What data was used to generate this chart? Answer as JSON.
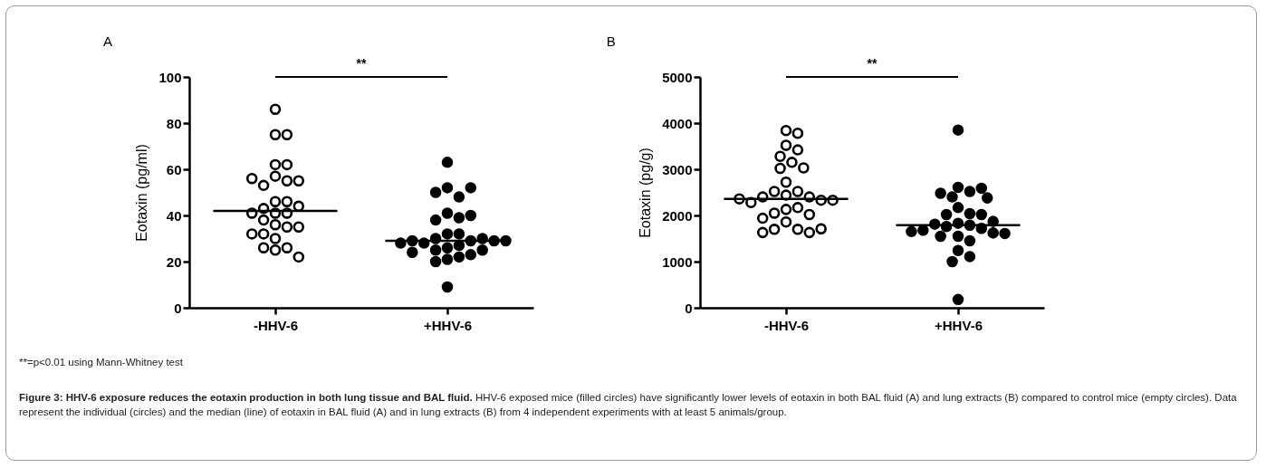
{
  "chart_data": [
    {
      "type": "scatter",
      "title": "A",
      "ylabel": "Eotaxin (pg/ml)",
      "categories": [
        "-HHV-6",
        "+HHV-6"
      ],
      "ylim": [
        0,
        100
      ],
      "yticks": [
        0,
        20,
        40,
        60,
        80,
        100
      ],
      "grid": false,
      "legend": false,
      "marker": "circle",
      "annotations": [
        "**",
        "**=p<0.01 using Mann-Whitney test",
        "Figure 3: HHV-6 exposure reduces the eotaxin production in both lung tissue and BAL fluid.",
        "HHV-6 exposed mice (filled circles) have significantly lower levels of eotaxin in both BAL fluid (A) and lung extracts (B) compared to control mice (empty circles). Data represent the individual (circles) and the median (line) of eotaxin in BAL fluid (A) and in lung extracts (B) from 4 independent experiments with at least 5 animals/group."
      ],
      "series": [
        {
          "type": "scatter",
          "color": "#ffffff",
          "x": [
            "-HHV-6",
            "-HHV-6",
            "-HHV-6",
            "-HHV-6",
            "-HHV-6",
            "-HHV-6",
            "-HHV-6",
            "-HHV-6",
            "-HHV-6",
            "-HHV-6",
            "-HHV-6",
            "-HHV-6",
            "-HHV-6",
            "-HHV-6",
            "-HHV-6",
            "-HHV-6",
            "-HHV-6",
            "-HHV-6",
            "-HHV-6",
            "-HHV-6",
            "-HHV-6",
            "-HHV-6",
            "-HHV-6",
            "-HHV-6",
            "-HHV-6",
            "-HHV-6",
            "-HHV-6",
            "-HHV-6"
          ],
          "values": [
            86,
            75,
            75,
            62,
            62,
            57,
            55,
            53,
            55,
            56,
            46,
            46,
            43,
            44,
            41,
            41,
            41,
            38,
            36,
            35,
            35,
            32,
            32,
            30,
            25,
            26,
            26,
            22
          ]
        },
        {
          "type": "scatter",
          "color": "#000000",
          "x": [
            "+HHV-6",
            "+HHV-6",
            "+HHV-6",
            "+HHV-6",
            "+HHV-6",
            "+HHV-6",
            "+HHV-6",
            "+HHV-6",
            "+HHV-6",
            "+HHV-6",
            "+HHV-6",
            "+HHV-6",
            "+HHV-6",
            "+HHV-6",
            "+HHV-6",
            "+HHV-6",
            "+HHV-6",
            "+HHV-6",
            "+HHV-6",
            "+HHV-6",
            "+HHV-6",
            "+HHV-6",
            "+HHV-6",
            "+HHV-6",
            "+HHV-6",
            "+HHV-6",
            "+HHV-6",
            "+HHV-6",
            "+HHV-6"
          ],
          "values": [
            63,
            52,
            48,
            50,
            52,
            41,
            39,
            38,
            40,
            32,
            32,
            30,
            29,
            28,
            30,
            29,
            29,
            28,
            26,
            27,
            25,
            25,
            23,
            24,
            21,
            22,
            20,
            9,
            29
          ]
        },
        {
          "type": "box",
          "color": "#000000",
          "boxes": [
            {
              "low": 42,
              "q1": 42,
              "median": 42,
              "q3": 42,
              "high": 42
            },
            {
              "low": 29,
              "q1": 29,
              "median": 29,
              "q3": 29,
              "high": 29
            }
          ]
        }
      ]
    },
    {
      "type": "scatter",
      "title": "B",
      "ylabel": "Eotaxin (pg/g)",
      "categories": [
        "-HHV-6",
        "+HHV-6"
      ],
      "ylim": [
        0,
        5000
      ],
      "yticks": [
        0,
        1000,
        2000,
        3000,
        4000,
        5000
      ],
      "grid": false,
      "legend": false,
      "marker": "circle",
      "annotations": [
        "**"
      ],
      "series": [
        {
          "type": "scatter",
          "color": "#ffffff",
          "x": [
            "-HHV-6",
            "-HHV-6",
            "-HHV-6",
            "-HHV-6",
            "-HHV-6",
            "-HHV-6",
            "-HHV-6",
            "-HHV-6",
            "-HHV-6",
            "-HHV-6",
            "-HHV-6",
            "-HHV-6",
            "-HHV-6",
            "-HHV-6",
            "-HHV-6",
            "-HHV-6",
            "-HHV-6",
            "-HHV-6",
            "-HHV-6",
            "-HHV-6",
            "-HHV-6",
            "-HHV-6",
            "-HHV-6",
            "-HHV-6",
            "-HHV-6",
            "-HHV-6",
            "-HHV-6",
            "-HHV-6",
            "-HHV-6"
          ],
          "values": [
            3840,
            3780,
            3520,
            3420,
            3280,
            3150,
            3020,
            3030,
            2720,
            2520,
            2520,
            2440,
            2400,
            2400,
            2330,
            2280,
            2330,
            2130,
            2170,
            2050,
            2020,
            1940,
            1860,
            1700,
            1700,
            1630,
            1630,
            1710,
            2360
          ]
        },
        {
          "type": "scatter",
          "color": "#000000",
          "x": [
            "+HHV-6",
            "+HHV-6",
            "+HHV-6",
            "+HHV-6",
            "+HHV-6",
            "+HHV-6",
            "+HHV-6",
            "+HHV-6",
            "+HHV-6",
            "+HHV-6",
            "+HHV-6",
            "+HHV-6",
            "+HHV-6",
            "+HHV-6",
            "+HHV-6",
            "+HHV-6",
            "+HHV-6",
            "+HHV-6",
            "+HHV-6",
            "+HHV-6",
            "+HHV-6",
            "+HHV-6",
            "+HHV-6",
            "+HHV-6",
            "+HHV-6",
            "+HHV-6",
            "+HHV-6",
            "+HHV-6"
          ],
          "values": [
            3850,
            2610,
            2520,
            2400,
            2480,
            2590,
            2380,
            2170,
            2040,
            2020,
            2020,
            1830,
            1790,
            1760,
            1720,
            1810,
            1870,
            1680,
            1620,
            1550,
            1550,
            1610,
            1650,
            1450,
            1240,
            1110,
            1000,
            180
          ]
        },
        {
          "type": "box",
          "color": "#000000",
          "boxes": [
            {
              "low": 2360,
              "q1": 2360,
              "median": 2360,
              "q3": 2360,
              "high": 2360
            },
            {
              "low": 1790,
              "q1": 1790,
              "median": 1790,
              "q3": 1790,
              "high": 1790
            }
          ]
        }
      ]
    }
  ]
}
